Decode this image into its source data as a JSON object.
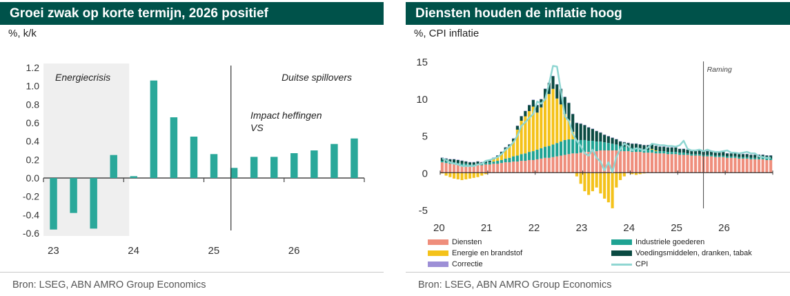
{
  "left": {
    "title": "Groei zwak op korte termijn, 2026 positief",
    "unit": "%, k/k",
    "source": "Bron: LSEG, ABN AMRO Group Economics",
    "annotations": {
      "energy_crisis": "Energiecrisis",
      "spillovers": "Duitse spillovers",
      "impact_line1": "Impact heffingen",
      "impact_line2": "VS"
    },
    "colors": {
      "bar": "#2aa89a",
      "shade": "#efefef",
      "axis": "#444444"
    }
  },
  "right": {
    "title": "Diensten houden de inflatie hoog",
    "unit": "%, CPI inflatie",
    "source": "Bron: LSEG, ABN AMRO Group Economics",
    "annotations": {
      "forecast": "Raming"
    },
    "legend": {
      "services": "Diensten",
      "industrial": "Industriele goederen",
      "energy": "Energie en brandstof",
      "food": "Voedingsmiddelen, dranken, tabak",
      "correction": "Correctie",
      "cpi": "CPI"
    },
    "colors": {
      "services": "#ef8e7c",
      "industrial": "#1fa393",
      "energy": "#f4c21a",
      "food": "#0a4a42",
      "correction": "#9d8fd6",
      "cpi": "#8fd6d2"
    }
  },
  "chart_data": [
    {
      "type": "bar",
      "title": "Groei zwak op korte termijn, 2026 positief",
      "ylabel": "%, k/k",
      "ylim": [
        -0.6,
        1.2
      ],
      "yticks": [
        -0.6,
        -0.4,
        -0.2,
        0.0,
        0.2,
        0.4,
        0.6,
        0.8,
        1.0,
        1.2
      ],
      "ytick_labels": [
        "-0.6",
        "-0.4",
        "-0.2",
        "0.0",
        "0.2",
        "0.4",
        "0.6",
        "0.8",
        "1.0",
        "1.2"
      ],
      "x_labels": [
        "23",
        "24",
        "25",
        "26"
      ],
      "categories": [
        "23Q1",
        "23Q2",
        "23Q3",
        "23Q4",
        "24Q1",
        "24Q2",
        "24Q3",
        "24Q4",
        "25Q1",
        "25Q2",
        "25Q3",
        "25Q4",
        "26Q1",
        "26Q2",
        "26Q3",
        "26Q4"
      ],
      "values": [
        -0.56,
        -0.38,
        -0.55,
        0.25,
        0.02,
        1.06,
        0.66,
        0.45,
        0.26,
        0.11,
        0.23,
        0.23,
        0.27,
        0.3,
        0.37,
        0.43
      ]
    },
    {
      "type": "bar",
      "stacked": true,
      "title": "Diensten houden de inflatie hoog",
      "ylabel": "%, CPI inflatie",
      "ylim": [
        -5,
        15
      ],
      "yticks": [
        -5,
        0,
        5,
        10,
        15
      ],
      "ytick_labels": [
        "-5",
        "0",
        "5",
        "10",
        "15"
      ],
      "x_labels": [
        "20",
        "21",
        "22",
        "23",
        "24",
        "25",
        "26"
      ],
      "x_start": 2020.0,
      "x_step": 0.0833,
      "series": [
        {
          "name": "Diensten",
          "values": [
            1.4,
            1.3,
            1.2,
            1.2,
            1.1,
            1.0,
            1.0,
            0.9,
            0.9,
            1.0,
            1.0,
            1.1,
            1.1,
            1.2,
            1.2,
            1.3,
            1.4,
            1.4,
            1.5,
            1.5,
            1.6,
            1.6,
            1.7,
            1.7,
            1.8,
            1.9,
            2.0,
            2.0,
            2.1,
            2.2,
            2.3,
            2.4,
            2.5,
            2.6,
            2.6,
            2.7,
            2.8,
            2.8,
            2.9,
            2.9,
            3.0,
            3.0,
            3.0,
            3.0,
            3.0,
            2.9,
            2.9,
            2.9,
            2.8,
            2.8,
            2.8,
            2.7,
            2.7,
            2.7,
            2.6,
            2.6,
            2.6,
            2.5,
            2.5,
            2.5,
            2.4,
            2.4,
            2.4,
            2.3,
            2.3,
            2.3,
            2.2,
            2.2,
            2.2,
            2.1,
            2.1,
            2.1,
            2.0,
            2.0,
            2.0,
            1.9,
            1.9,
            1.9,
            1.8,
            1.8,
            1.8,
            1.8,
            1.7,
            1.7
          ]
        },
        {
          "name": "Industriele goederen",
          "values": [
            0.2,
            0.2,
            0.2,
            0.2,
            0.2,
            0.2,
            0.2,
            0.2,
            0.2,
            0.2,
            0.2,
            0.2,
            0.3,
            0.3,
            0.4,
            0.4,
            0.5,
            0.6,
            0.7,
            0.8,
            0.9,
            1.0,
            1.1,
            1.2,
            1.3,
            1.4,
            1.5,
            1.6,
            1.7,
            1.8,
            1.9,
            2.0,
            2.0,
            1.9,
            1.8,
            1.7,
            1.6,
            1.5,
            1.4,
            1.3,
            1.2,
            1.1,
            1.0,
            0.9,
            0.8,
            0.7,
            0.6,
            0.5,
            0.5,
            0.5,
            0.4,
            0.4,
            0.4,
            0.4,
            0.3,
            0.3,
            0.3,
            0.3,
            0.3,
            0.3,
            0.3,
            0.3,
            0.2,
            0.2,
            0.2,
            0.2,
            0.2,
            0.2,
            0.2,
            0.2,
            0.2,
            0.2,
            0.2,
            0.2,
            0.2,
            0.2,
            0.2,
            0.2,
            0.2,
            0.2,
            0.2,
            0.2,
            0.2,
            0.2
          ]
        },
        {
          "name": "Energie en brandstof",
          "values": [
            -0.1,
            -0.4,
            -0.6,
            -0.8,
            -0.9,
            -1.0,
            -0.9,
            -0.8,
            -0.7,
            -0.6,
            -0.4,
            -0.2,
            0.0,
            0.3,
            0.5,
            0.8,
            1.2,
            1.5,
            2.0,
            3.5,
            4.5,
            5.0,
            5.5,
            6.0,
            5.0,
            5.5,
            6.5,
            7.0,
            7.5,
            6.0,
            5.0,
            3.5,
            2.5,
            1.0,
            -0.5,
            -1.5,
            -2.5,
            -3.0,
            -2.5,
            -2.0,
            -2.8,
            -3.5,
            -4.0,
            -4.8,
            -2.0,
            -1.0,
            -0.5,
            0.0,
            -0.2,
            -0.3,
            -0.2,
            -0.1,
            0.0,
            0.1,
            0.1,
            0.0,
            0.0,
            0.0,
            0.0,
            0.0,
            0.0,
            0.0,
            0.0,
            0.0,
            0.0,
            0.0,
            0.0,
            0.0,
            0.0,
            0.0,
            0.0,
            0.0,
            0.0,
            0.0,
            0.0,
            0.0,
            0.0,
            0.0,
            0.0,
            0.0,
            0.0,
            0.0,
            0.0,
            0.0
          ]
        },
        {
          "name": "Voedingsmiddelen, dranken, tabak",
          "values": [
            0.4,
            0.4,
            0.4,
            0.4,
            0.4,
            0.4,
            0.3,
            0.3,
            0.3,
            0.3,
            0.2,
            0.2,
            0.2,
            0.2,
            0.2,
            0.3,
            0.3,
            0.3,
            0.4,
            0.5,
            0.6,
            0.7,
            0.8,
            0.9,
            1.0,
            1.1,
            1.3,
            1.5,
            1.7,
            1.9,
            2.1,
            2.3,
            2.4,
            2.4,
            2.3,
            2.2,
            2.0,
            1.8,
            1.6,
            1.4,
            1.2,
            1.0,
            0.9,
            0.8,
            0.7,
            0.6,
            0.6,
            0.6,
            0.6,
            0.6,
            0.6,
            0.6,
            0.6,
            0.6,
            0.6,
            0.6,
            0.6,
            0.6,
            0.6,
            0.6,
            0.5,
            0.5,
            0.5,
            0.5,
            0.5,
            0.5,
            0.5,
            0.5,
            0.5,
            0.5,
            0.5,
            0.5,
            0.4,
            0.4,
            0.4,
            0.4,
            0.4,
            0.4,
            0.4,
            0.4,
            0.4,
            0.4,
            0.4,
            0.4
          ]
        },
        {
          "name": "Correctie",
          "values": [
            0.05,
            0.05,
            0.05,
            0.05,
            0.05,
            0.05,
            0.05,
            0.05,
            0.05,
            0.05,
            0.05,
            0.05,
            0.05,
            0.05,
            0.05,
            0.05,
            0.05,
            0.05,
            0.05,
            0.05,
            0.05,
            0.05,
            0.05,
            0.05,
            0.05,
            0.05,
            0.05,
            0.05,
            0.05,
            0.05,
            0.05,
            0.05,
            0.05,
            0.05,
            0.05,
            0.05,
            0.05,
            0.05,
            0.05,
            0.05,
            0.05,
            0.05,
            0.05,
            0.05,
            0.05,
            0.05,
            0.05,
            0.05,
            0.05,
            0.05,
            0.05,
            0.05,
            0.05,
            0.05,
            0.05,
            0.05,
            0.05,
            0.05,
            0.05,
            0.05,
            0.05,
            0.05,
            0.05,
            0.05,
            0.05,
            0.05,
            0.05,
            0.05,
            0.05,
            0.05,
            0.05,
            0.05,
            0.05,
            0.05,
            0.05,
            0.05,
            0.05,
            0.05,
            0.05,
            0.05,
            0.05,
            0.05,
            0.05,
            0.05
          ]
        }
      ],
      "cpi": [
        1.9,
        1.7,
        1.4,
        1.2,
        1.1,
        0.9,
        0.9,
        0.9,
        0.9,
        1.1,
        1.2,
        1.6,
        1.7,
        1.9,
        2.1,
        2.5,
        3.1,
        3.5,
        4.1,
        5.0,
        6.3,
        6.8,
        7.4,
        7.9,
        9.6,
        9.3,
        9.9,
        12.0,
        14.4,
        14.3,
        11.0,
        7.6,
        7.0,
        5.2,
        4.3,
        3.6,
        2.6,
        2.3,
        3.1,
        2.0,
        1.5,
        0.3,
        1.4,
        0.1,
        2.1,
        3.2,
        3.9,
        3.6,
        3.0,
        3.3,
        3.2,
        3.0,
        3.4,
        3.9,
        3.8,
        3.7,
        3.7,
        3.6,
        3.6,
        3.5,
        3.7,
        4.3,
        3.2,
        3.0,
        3.0,
        3.1,
        2.9,
        3.1,
        2.9,
        2.8,
        2.8,
        2.9,
        3.0,
        2.7,
        2.7,
        2.6,
        2.7,
        2.8,
        2.6,
        2.6,
        2.2,
        2.1,
        2.0,
        2.0
      ]
    }
  ]
}
